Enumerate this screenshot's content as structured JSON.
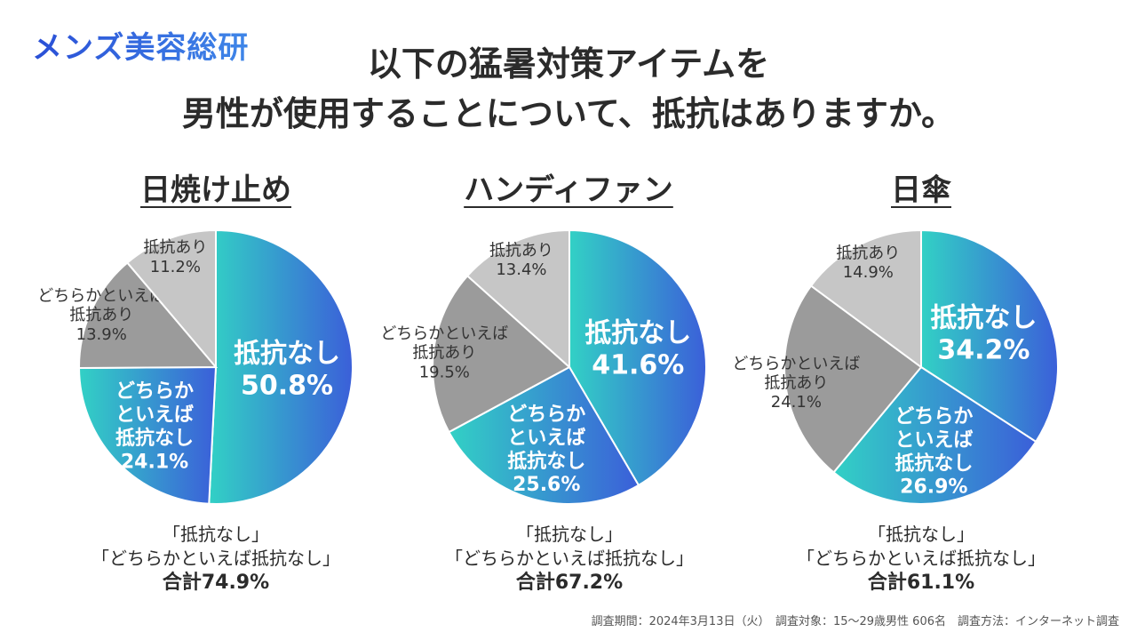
{
  "logo": "メンズ美容総研",
  "title_line1": "以下の猛暑対策アイテムを",
  "title_line2": "男性が使用することについて、抵抗はありますか。",
  "colors": {
    "gradient_start": "#32d1c5",
    "gradient_end": "#3b5fd9",
    "somewhat_yes_gray": "#9b9b9b",
    "yes_gray": "#c6c6c6"
  },
  "note": {
    "line1": "「抵抗なし」",
    "line2": "「どちらかといえば抵抗なし」"
  },
  "footer": "調査期間：2024年3月13日（火）　調査対象：15〜29歳男性 606名　調査方法：インターネット調査",
  "chart_data": [
    {
      "type": "pie",
      "title": "日焼け止め",
      "categories": [
        "抵抗なし",
        "どちらかといえば抵抗なし",
        "どちらかといえば抵抗あり",
        "抵抗あり"
      ],
      "values": [
        50.8,
        24.1,
        13.9,
        11.2
      ],
      "labels": [
        "抵抗なし\n50.8%",
        "どちらか\nといえば\n抵抗なし\n24.1%",
        "どちらかといえば\n抵抗あり\n13.9%",
        "抵抗あり\n11.2%"
      ],
      "total": "合計74.9%"
    },
    {
      "type": "pie",
      "title": "ハンディファン",
      "categories": [
        "抵抗なし",
        "どちらかといえば抵抗なし",
        "どちらかといえば抵抗あり",
        "抵抗あり"
      ],
      "values": [
        41.6,
        25.6,
        19.5,
        13.4
      ],
      "labels": [
        "抵抗なし\n41.6%",
        "どちらか\nといえば\n抵抗なし\n25.6%",
        "どちらかといえば\n抵抗あり\n19.5%",
        "抵抗あり\n13.4%"
      ],
      "total": "合計67.2%"
    },
    {
      "type": "pie",
      "title": "日傘",
      "categories": [
        "抵抗なし",
        "どちらかといえば抵抗なし",
        "どちらかといえば抵抗あり",
        "抵抗あり"
      ],
      "values": [
        34.2,
        26.9,
        24.1,
        14.9
      ],
      "labels": [
        "抵抗なし\n34.2%",
        "どちらか\nといえば\n抵抗なし\n26.9%",
        "どちらかといえば\n抵抗あり\n24.1%",
        "抵抗あり\n14.9%"
      ],
      "total": "合計61.1%"
    }
  ]
}
